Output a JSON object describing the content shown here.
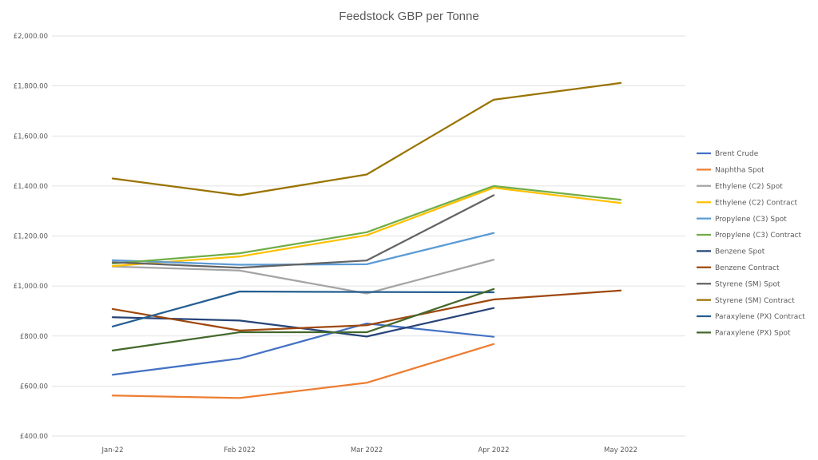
{
  "chart_data": {
    "type": "line",
    "title": "Feedstock GBP per Tonne",
    "xlabel": "",
    "ylabel": "",
    "categories": [
      "Jan-22",
      "Feb 2022",
      "Mar 2022",
      "Apr 2022",
      "May 2022"
    ],
    "ylim": [
      400,
      2000
    ],
    "yticks": [
      400,
      600,
      800,
      1000,
      1200,
      1400,
      1600,
      1800,
      2000
    ],
    "ytick_labels": [
      "£400.00",
      "£600.00",
      "£800.00",
      "£1,000.00",
      "£1,200.00",
      "£1,400.00",
      "£1,600.00",
      "£1,800.00",
      "£2,000.00"
    ],
    "grid": true,
    "legend_position": "right",
    "series": [
      {
        "name": "Brent Crude",
        "color": "#4472C4",
        "values": [
          645,
          710,
          850,
          797,
          null
        ]
      },
      {
        "name": "Naphtha Spot",
        "color": "#ED7D31",
        "values": [
          562,
          552,
          613,
          768,
          null
        ]
      },
      {
        "name": "Ethylene (C2) Spot",
        "color": "#A5A5A5",
        "values": [
          1078,
          1062,
          970,
          1105,
          null
        ]
      },
      {
        "name": "Ethylene (C2) Contract",
        "color": "#FFC000",
        "values": [
          1080,
          1118,
          1203,
          1393,
          1332
        ]
      },
      {
        "name": "Propylene (C3) Spot",
        "color": "#5B9BD5",
        "values": [
          1103,
          1085,
          1087,
          1212,
          null
        ]
      },
      {
        "name": "Propylene (C3) Contract",
        "color": "#70AD47",
        "values": [
          1090,
          1131,
          1215,
          1400,
          1345
        ]
      },
      {
        "name": "Benzene Spot",
        "color": "#264478",
        "values": [
          875,
          862,
          798,
          912,
          null
        ]
      },
      {
        "name": "Benzene Contract",
        "color": "#9E480E",
        "values": [
          908,
          822,
          843,
          946,
          982
        ]
      },
      {
        "name": "Styrene (SM) Spot",
        "color": "#636363",
        "values": [
          1095,
          1073,
          1102,
          1363,
          null
        ]
      },
      {
        "name": "Styrene (SM) Contract",
        "color": "#997300",
        "values": [
          1430,
          1363,
          1446,
          1745,
          1812
        ]
      },
      {
        "name": "Paraxylene (PX) Contract",
        "color": "#255E91",
        "values": [
          838,
          978,
          976,
          975,
          null
        ]
      },
      {
        "name": "Paraxylene (PX) Spot",
        "color": "#43682B",
        "values": [
          742,
          815,
          815,
          988,
          null
        ]
      }
    ]
  }
}
